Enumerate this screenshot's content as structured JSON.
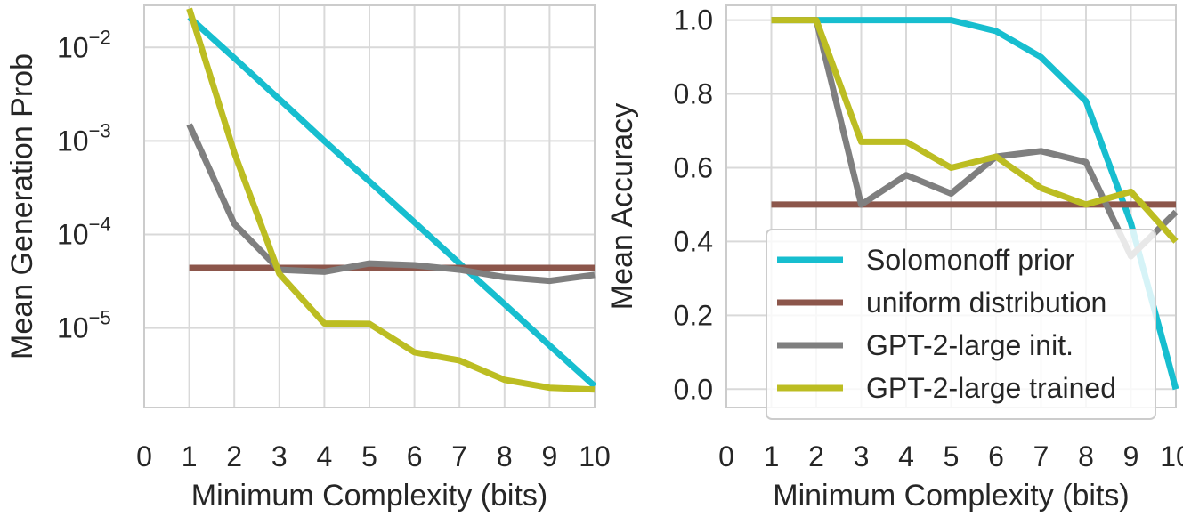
{
  "colors": {
    "solomonoff": "#17becf",
    "uniform": "#8c564b",
    "gpt_init": "#7f7f7f",
    "gpt_trained": "#bcbd22",
    "grid": "#d9d9d9",
    "frame": "#cccccc",
    "text": "#262626"
  },
  "chart_data": [
    {
      "type": "line",
      "yscale": "log",
      "xlabel": "Minimum Complexity (bits)",
      "ylabel": "Mean Generation Prob",
      "xlim": [
        0,
        10
      ],
      "xticks": [
        0,
        1,
        2,
        3,
        4,
        5,
        6,
        7,
        8,
        9,
        10
      ],
      "ylim_log10": [
        -5.85,
        -1.55
      ],
      "yticks": [
        {
          "value": 0.01,
          "base": "10",
          "exp": "−2"
        },
        {
          "value": 0.001,
          "base": "10",
          "exp": "−3"
        },
        {
          "value": 0.0001,
          "base": "10",
          "exp": "−4"
        },
        {
          "value": 1e-05,
          "base": "10",
          "exp": "−5"
        }
      ],
      "x": [
        1,
        2,
        3,
        4,
        5,
        6,
        7,
        8,
        9,
        10
      ],
      "series": [
        {
          "name": "Solomonoff prior",
          "key": "solomonoff",
          "values": [
            0.021,
            0.0077,
            0.0028,
            0.001,
            0.00037,
            0.000135,
            4.9e-05,
            1.8e-05,
            6.5e-06,
            2.4e-06
          ]
        },
        {
          "name": "uniform distribution",
          "key": "uniform",
          "values": [
            4.4e-05,
            4.4e-05,
            4.4e-05,
            4.4e-05,
            4.4e-05,
            4.4e-05,
            4.4e-05,
            4.4e-05,
            4.4e-05,
            4.4e-05
          ]
        },
        {
          "name": "GPT-2-large init.",
          "key": "gpt_init",
          "values": [
            0.0015,
            0.00013,
            4.2e-05,
            4e-05,
            4.9e-05,
            4.7e-05,
            4.2e-05,
            3.5e-05,
            3.2e-05,
            3.7e-05
          ]
        },
        {
          "name": "GPT-2-large trained",
          "key": "gpt_trained",
          "values": [
            0.026,
            0.00075,
            3.8e-05,
            1.12e-05,
            1.11e-05,
            5.5e-06,
            4.5e-06,
            2.8e-06,
            2.3e-06,
            2.2e-06
          ]
        }
      ]
    },
    {
      "type": "line",
      "yscale": "linear",
      "xlabel": "Minimum Complexity (bits)",
      "ylabel": "Mean Accuracy",
      "xlim": [
        0,
        10
      ],
      "xticks": [
        0,
        1,
        2,
        3,
        4,
        5,
        6,
        7,
        8,
        9,
        10
      ],
      "ylim": [
        -0.05,
        1.04
      ],
      "yticks": [
        "0.0",
        "0.2",
        "0.4",
        "0.6",
        "0.8",
        "1.0"
      ],
      "x": [
        1,
        2,
        3,
        4,
        5,
        6,
        7,
        8,
        9,
        10
      ],
      "legend_position": "lower-right",
      "series": [
        {
          "name": "Solomonoff prior",
          "key": "solomonoff",
          "values": [
            1.0,
            1.0,
            1.0,
            1.0,
            1.0,
            0.97,
            0.9,
            0.78,
            0.45,
            0.0
          ]
        },
        {
          "name": "uniform distribution",
          "key": "uniform",
          "values": [
            0.5,
            0.5,
            0.5,
            0.5,
            0.5,
            0.5,
            0.5,
            0.5,
            0.5,
            0.5
          ]
        },
        {
          "name": "GPT-2-large init.",
          "key": "gpt_init",
          "values": [
            1.0,
            1.0,
            0.5,
            0.58,
            0.53,
            0.63,
            0.645,
            0.615,
            0.36,
            0.48
          ]
        },
        {
          "name": "GPT-2-large trained",
          "key": "gpt_trained",
          "values": [
            1.0,
            1.0,
            0.67,
            0.67,
            0.6,
            0.63,
            0.545,
            0.5,
            0.535,
            0.4
          ]
        }
      ]
    }
  ]
}
